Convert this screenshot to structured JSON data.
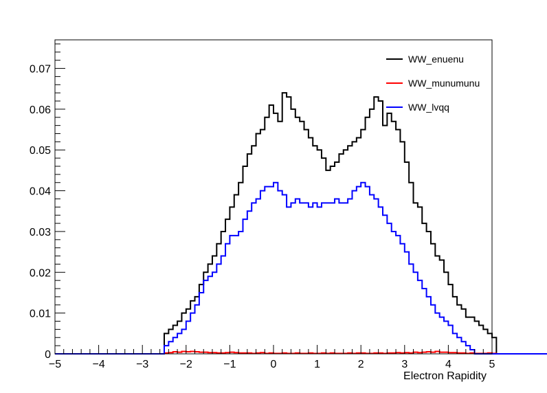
{
  "chart_data": {
    "type": "line",
    "xlabel": "Electron Rapidity",
    "ylabel": "",
    "xlim": [
      -5,
      5
    ],
    "ylim": [
      0,
      0.077
    ],
    "x_ticks": [
      -5,
      -4,
      -3,
      -2,
      -1,
      0,
      1,
      2,
      3,
      4,
      5
    ],
    "x_tick_labels": [
      "−5",
      "−4",
      "−3",
      "−2",
      "−1",
      "0",
      "1",
      "2",
      "3",
      "4",
      "5"
    ],
    "y_ticks": [
      0,
      0.01,
      0.02,
      0.03,
      0.04,
      0.05,
      0.06,
      0.07
    ],
    "y_tick_labels": [
      "0",
      "0.01",
      "0.02",
      "0.03",
      "0.04",
      "0.05",
      "0.06",
      "0.07"
    ],
    "bin_edges_start": -5,
    "bin_width": 0.1,
    "grid": false,
    "legend_position": "top-right",
    "series": [
      {
        "name": "WW_enuenu",
        "color": "#000000",
        "values": [
          0,
          0,
          0,
          0,
          0,
          0,
          0,
          0,
          0,
          0,
          0,
          0,
          0,
          0,
          0,
          0,
          0,
          0,
          0,
          0,
          0,
          0,
          0,
          0,
          0,
          0.005,
          0.006,
          0.007,
          0.008,
          0.01,
          0.011,
          0.013,
          0.014,
          0.017,
          0.02,
          0.022,
          0.024,
          0.027,
          0.03,
          0.033,
          0.036,
          0.039,
          0.042,
          0.046,
          0.049,
          0.051,
          0.054,
          0.055,
          0.058,
          0.061,
          0.059,
          0.057,
          0.064,
          0.063,
          0.06,
          0.058,
          0.057,
          0.055,
          0.053,
          0.051,
          0.05,
          0.048,
          0.045,
          0.046,
          0.047,
          0.049,
          0.05,
          0.051,
          0.052,
          0.053,
          0.055,
          0.058,
          0.06,
          0.063,
          0.062,
          0.056,
          0.059,
          0.057,
          0.055,
          0.052,
          0.047,
          0.042,
          0.037,
          0.036,
          0.032,
          0.03,
          0.027,
          0.024,
          0.023,
          0.02,
          0.017,
          0.014,
          0.012,
          0.011,
          0.009,
          0.009,
          0.008,
          0.007,
          0.006,
          0.005,
          0.004,
          0,
          0,
          0,
          0,
          0,
          0,
          0,
          0,
          0,
          0,
          0,
          0,
          0,
          0,
          0,
          0,
          0,
          0,
          0,
          0,
          0,
          0,
          0,
          0,
          0
        ]
      },
      {
        "name": "WW_munumunu",
        "color": "#ff0000",
        "values": [
          0,
          0,
          0,
          0,
          0,
          0,
          0,
          0,
          0,
          0,
          0,
          0,
          0,
          0,
          0,
          0,
          0,
          0,
          0,
          0,
          0,
          0,
          0,
          0,
          0,
          0.0002,
          0.0003,
          0.0005,
          0.0004,
          0.0006,
          0.0005,
          0.0006,
          0.0005,
          0.0004,
          0.0004,
          0.0003,
          0.0003,
          0.0002,
          0.0002,
          0.0003,
          0.0004,
          0.0003,
          0.0002,
          0.0002,
          0.0002,
          0.0001,
          0.0002,
          0.0003,
          0.0001,
          0.0002,
          0.0001,
          0.0001,
          0.0002,
          0.0001,
          0.0001,
          0.0002,
          0.0001,
          0.0001,
          0.0002,
          0.0001,
          0.0001,
          0.0002,
          0.0001,
          0.0002,
          0.0001,
          0.0001,
          0.0001,
          0.0002,
          0.0001,
          0.0002,
          0.0002,
          0.0001,
          0.0001,
          0.0002,
          0.0002,
          0.0001,
          0.0002,
          0.0002,
          0.0003,
          0.0002,
          0.0003,
          0.0002,
          0.0004,
          0.0003,
          0.0004,
          0.0005,
          0.0004,
          0.0006,
          0.0004,
          0.0004,
          0.0003,
          0.0003,
          0.0002,
          0.0002,
          0.0001,
          0.0002,
          0.0001,
          0.0001,
          0.0001,
          0.0002,
          0.0001,
          0,
          0,
          0,
          0,
          0,
          0,
          0,
          0,
          0,
          0,
          0,
          0,
          0,
          0,
          0,
          0,
          0,
          0,
          0,
          0,
          0,
          0,
          0,
          0,
          0
        ]
      },
      {
        "name": "WW_lvqq",
        "color": "#0000ff",
        "values": [
          0,
          0,
          0,
          0,
          0,
          0,
          0,
          0,
          0,
          0,
          0,
          0,
          0,
          0,
          0,
          0,
          0,
          0,
          0,
          0,
          0,
          0,
          0,
          0,
          0,
          0.002,
          0.003,
          0.004,
          0.005,
          0.006,
          0.008,
          0.01,
          0.012,
          0.015,
          0.018,
          0.019,
          0.02,
          0.022,
          0.024,
          0.027,
          0.029,
          0.029,
          0.03,
          0.033,
          0.035,
          0.037,
          0.038,
          0.04,
          0.041,
          0.041,
          0.042,
          0.04,
          0.039,
          0.036,
          0.037,
          0.038,
          0.037,
          0.037,
          0.036,
          0.037,
          0.036,
          0.037,
          0.037,
          0.037,
          0.038,
          0.037,
          0.037,
          0.038,
          0.04,
          0.041,
          0.042,
          0.041,
          0.039,
          0.038,
          0.036,
          0.034,
          0.032,
          0.03,
          0.029,
          0.027,
          0.025,
          0.022,
          0.02,
          0.018,
          0.016,
          0.014,
          0.012,
          0.01,
          0.009,
          0.008,
          0.007,
          0.005,
          0.004,
          0.003,
          0.002,
          0.001,
          0,
          0,
          0,
          0,
          0,
          0,
          0,
          0,
          0,
          0,
          0,
          0,
          0,
          0,
          0,
          0,
          0,
          0,
          0,
          0,
          0,
          0,
          0,
          0,
          0
        ]
      }
    ]
  }
}
